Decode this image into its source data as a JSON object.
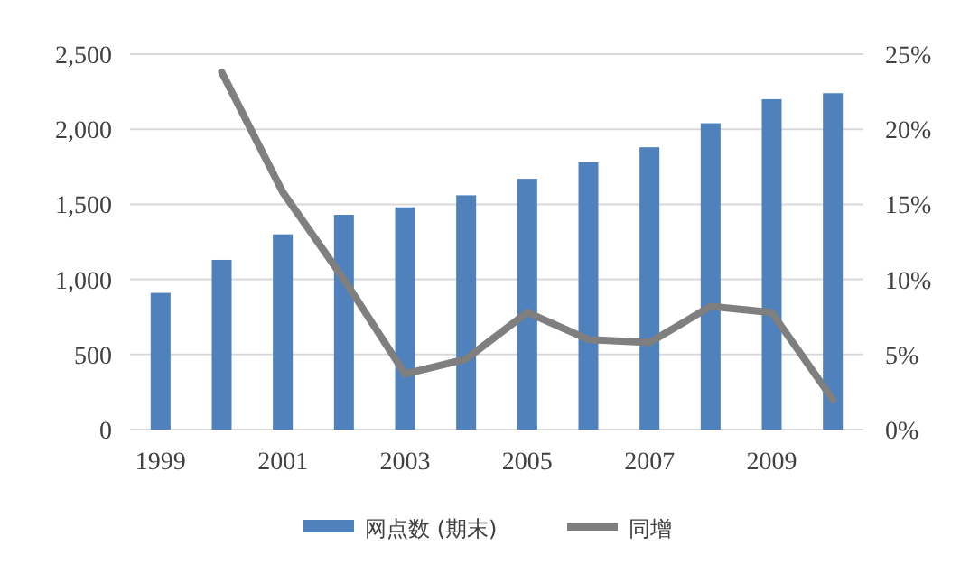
{
  "chart_data": {
    "type": "bar",
    "categories": [
      "1999",
      null,
      "2001",
      null,
      "2003",
      null,
      "2005",
      null,
      "2007",
      null,
      "2009",
      null
    ],
    "series": [
      {
        "name": "网点数 (期末)",
        "color": "#4f81bd",
        "values": [
          910,
          1130,
          1300,
          1430,
          1480,
          1560,
          1670,
          1780,
          1880,
          2040,
          2200,
          2240
        ]
      },
      {
        "name": "同增",
        "type": "line",
        "axis": "y2",
        "color": "#7f7f7f",
        "values": [
          null,
          23.8,
          15.8,
          10.0,
          3.7,
          4.7,
          7.8,
          6.0,
          5.8,
          8.2,
          7.8,
          2.0
        ]
      }
    ],
    "ylim": [
      0,
      2500
    ],
    "yticks": [
      {
        "value": 0,
        "label": "0"
      },
      {
        "value": 500,
        "label": "500"
      },
      {
        "value": 1000,
        "label": "1,000"
      },
      {
        "value": 1500,
        "label": "1,500"
      },
      {
        "value": 2000,
        "label": "2,000"
      },
      {
        "value": 2500,
        "label": "2,500"
      }
    ],
    "y2lim": [
      0,
      25
    ],
    "y2ticks": [
      {
        "value": 0,
        "label": "0%"
      },
      {
        "value": 5,
        "label": "5%"
      },
      {
        "value": 10,
        "label": "10%"
      },
      {
        "value": 15,
        "label": "15%"
      },
      {
        "value": 20,
        "label": "20%"
      },
      {
        "value": 25,
        "label": "25%"
      }
    ],
    "grid": "y",
    "legend": "bottom"
  }
}
